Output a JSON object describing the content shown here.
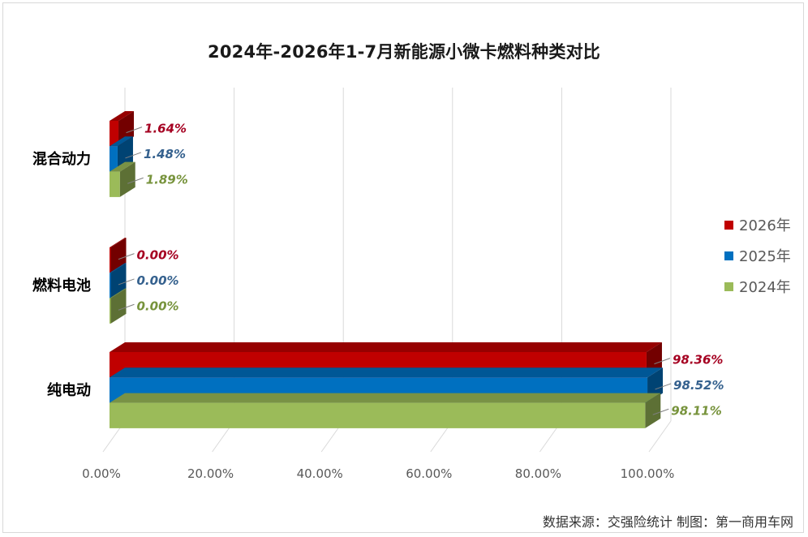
{
  "chart_data": {
    "type": "bar",
    "orientation": "horizontal",
    "style": "3d-clustered",
    "title": "2024年-2026年1-7月新能源小微卡燃料种类对比",
    "categories": [
      "混合动力",
      "燃料电池",
      "纯电动"
    ],
    "series": [
      {
        "name": "2026年",
        "color": "#c00000",
        "values": [
          1.64,
          0.0,
          98.36
        ],
        "labels": [
          "1.64%",
          "0.00%",
          "98.36%"
        ]
      },
      {
        "name": "2025年",
        "color": "#0070c0",
        "values": [
          1.48,
          0.0,
          98.52
        ],
        "labels": [
          "1.48%",
          "0.00%",
          "98.52%"
        ]
      },
      {
        "name": "2024年",
        "color": "#9bbb59",
        "values": [
          1.89,
          0.0,
          98.11
        ],
        "labels": [
          "1.89%",
          "0.00%",
          "98.11%"
        ]
      }
    ],
    "label_colors": [
      "#a50021",
      "#35618e",
      "#77933c"
    ],
    "x_ticks": [
      "0.00%",
      "20.00%",
      "40.00%",
      "60.00%",
      "80.00%",
      "100.00%"
    ],
    "xlim": [
      0,
      100
    ],
    "grid": true,
    "legend_position": "right"
  },
  "source_text": "数据来源：交强险统计 制图：第一商用车网"
}
